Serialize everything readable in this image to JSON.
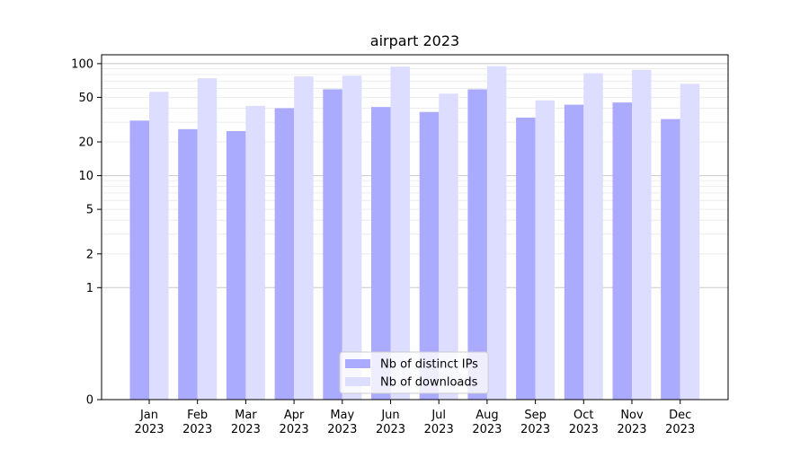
{
  "chart_data": {
    "type": "bar",
    "title": "airpart 2023",
    "xlabel": "",
    "ylabel": "",
    "y_scale": "symlog",
    "ylim": [
      0,
      120
    ],
    "y_ticks": [
      0,
      1,
      2,
      5,
      10,
      20,
      50,
      100
    ],
    "categories": [
      "Jan\n2023",
      "Feb\n2023",
      "Mar\n2023",
      "Apr\n2023",
      "May\n2023",
      "Jun\n2023",
      "Jul\n2023",
      "Aug\n2023",
      "Sep\n2023",
      "Oct\n2023",
      "Nov\n2023",
      "Dec\n2023"
    ],
    "series": [
      {
        "name": "Nb of distinct IPs",
        "color": "#aaaaff",
        "values": [
          31,
          26,
          25,
          40,
          59,
          41,
          37,
          59,
          33,
          43,
          45,
          32
        ]
      },
      {
        "name": "Nb of downloads",
        "color": "#ddddff",
        "values": [
          56,
          74,
          42,
          77,
          78,
          94,
          54,
          95,
          47,
          82,
          88,
          66
        ]
      }
    ],
    "legend_position": "bottom-center",
    "grid": "horizontal"
  }
}
